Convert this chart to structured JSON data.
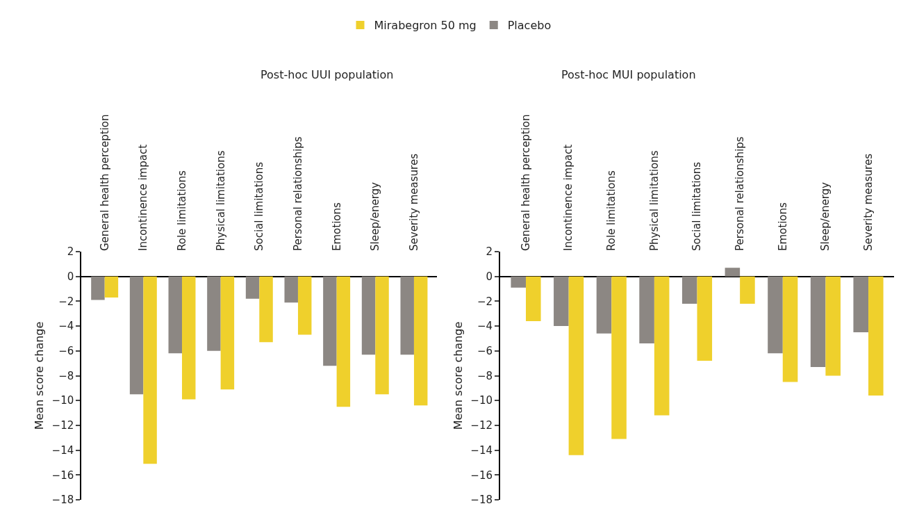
{
  "chart_data": [
    {
      "type": "bar",
      "title": "Post-hoc UUI population",
      "ylabel": "Mean score change",
      "categories": [
        "General health perception",
        "Incontinence impact",
        "Role limitations",
        "Physical limitations",
        "Social limitations",
        "Personal relationships",
        "Emotions",
        "Sleep/energy",
        "Severity measures"
      ],
      "series": [
        {
          "name": "Placebo",
          "color": "#8c8783",
          "values": [
            -1.9,
            -9.5,
            -6.2,
            -6.0,
            -1.8,
            -2.1,
            -7.2,
            -6.3,
            -6.3
          ]
        },
        {
          "name": "Mirabegron 50 mg",
          "color": "#efd02c",
          "values": [
            -1.7,
            -15.1,
            -9.9,
            -9.1,
            -5.3,
            -4.7,
            -10.5,
            -9.5,
            -10.4
          ]
        }
      ],
      "ylim": [
        -18,
        2
      ],
      "yticks": [
        {
          "value": 2,
          "label": "2"
        },
        {
          "value": 0,
          "label": "0"
        },
        {
          "value": -2,
          "label": "−2"
        },
        {
          "value": -4,
          "label": "−4"
        },
        {
          "value": -6,
          "label": "−6"
        },
        {
          "value": -8,
          "label": "−8"
        },
        {
          "value": -10,
          "label": "−10"
        },
        {
          "value": -12,
          "label": "−12"
        },
        {
          "value": -14,
          "label": "−14"
        },
        {
          "value": -16,
          "label": "−16"
        },
        {
          "value": -18,
          "label": "−18"
        }
      ],
      "legend": "top"
    },
    {
      "type": "bar",
      "title": "Post-hoc MUI population",
      "ylabel": "Mean score change",
      "categories": [
        "General health perception",
        "Incontinence impact",
        "Role limitations",
        "Physical limitations",
        "Social limitations",
        "Personal relationships",
        "Emotions",
        "Sleep/energy",
        "Severity measures"
      ],
      "series": [
        {
          "name": "Placebo",
          "color": "#8c8783",
          "values": [
            -0.9,
            -4.0,
            -4.6,
            -5.4,
            -2.2,
            0.7,
            -6.2,
            -7.3,
            -4.5
          ]
        },
        {
          "name": "Mirabegron 50 mg",
          "color": "#efd02c",
          "values": [
            -3.6,
            -14.4,
            -13.1,
            -11.2,
            -6.8,
            -2.2,
            -8.5,
            -8.0,
            -9.6
          ]
        }
      ],
      "ylim": [
        -18,
        2
      ],
      "yticks": [
        {
          "value": 2,
          "label": "2"
        },
        {
          "value": 0,
          "label": "0"
        },
        {
          "value": -2,
          "label": "−2"
        },
        {
          "value": -4,
          "label": "−4"
        },
        {
          "value": -6,
          "label": "−6"
        },
        {
          "value": -8,
          "label": "−8"
        },
        {
          "value": -10,
          "label": "−10"
        },
        {
          "value": -12,
          "label": "−12"
        },
        {
          "value": -14,
          "label": "−14"
        },
        {
          "value": -16,
          "label": "−16"
        },
        {
          "value": -18,
          "label": "−18"
        }
      ],
      "legend": "top"
    }
  ]
}
